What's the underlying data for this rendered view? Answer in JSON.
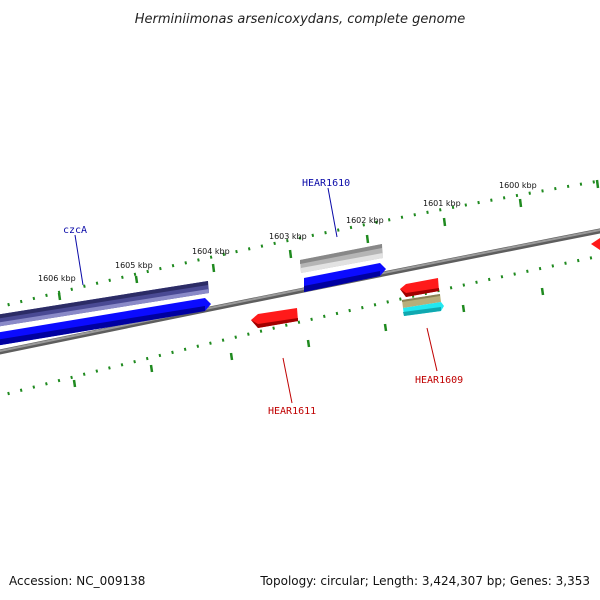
{
  "title": "Herminiimonas arsenicoxydans, complete genome",
  "footer": {
    "accession": "Accession: NC_009138",
    "topology": "Topology: circular; Length: 3,424,307 bp; Genes: 3,353"
  },
  "scale_labels": [
    "1606 kbp",
    "1605 kbp",
    "1604 kbp",
    "1603 kbp",
    "1602 kbp",
    "1601 kbp",
    "1600 kbp"
  ],
  "gene_labels": {
    "czcA": "czcA",
    "hear1610": "HEAR1610",
    "hear1611": "HEAR1611",
    "hear1609": "HEAR1609"
  },
  "colors": {
    "backbone": "#7a7a7a",
    "ticks": "#1f8a1f",
    "cds_blue": "#0b0bff",
    "cds_navy": "#4a4a94",
    "cds_gray": "#b5b5b5",
    "cds_red": "#ff1a1a",
    "cds_olive": "#b7ae7a",
    "cds_cyan": "#22e8f0"
  }
}
